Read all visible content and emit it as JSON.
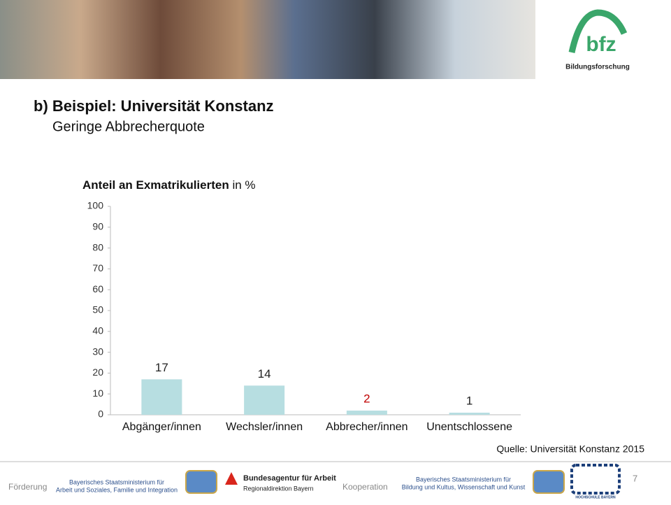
{
  "header": {
    "logo": "bfz",
    "logo_subtitle": "Bildungsforschung"
  },
  "slide": {
    "title": "b) Beispiel: Universität Konstanz",
    "subtitle": "Geringe Abbrecherquote",
    "source": "Quelle: Universität Konstanz 2015",
    "page_number": "7"
  },
  "chart_data": {
    "type": "bar",
    "title": "Anteil an Exmatrikulierten",
    "title_unit": "in %",
    "categories": [
      "Abgänger/innen",
      "Wechsler/innen",
      "Abbrecher/innen",
      "Unentschlossene"
    ],
    "values": [
      17,
      14,
      2,
      1
    ],
    "color": "#b7dee1",
    "value_label_colors": [
      "#222222",
      "#222222",
      "#c00000",
      "#222222"
    ],
    "ylim": [
      0,
      100
    ],
    "yticks": [
      0,
      10,
      20,
      30,
      40,
      50,
      60,
      70,
      80,
      90,
      100
    ],
    "grid": false
  },
  "footer": {
    "funding_label": "Förderung",
    "ministry1_line1": "Bayerisches Staatsministerium für",
    "ministry1_line2": "Arbeit und Soziales, Familie und Integration",
    "agency_name": "Bundesagentur für Arbeit",
    "agency_region": "Regionaldirektion Bayern",
    "cooperation_label": "Kooperation",
    "ministry2_line1": "Bayerisches Staatsministerium für",
    "ministry2_line2": "Bildung und Kultus, Wissenschaft und Kunst",
    "university_logo": "HOCHSCHULE BAYERN"
  }
}
